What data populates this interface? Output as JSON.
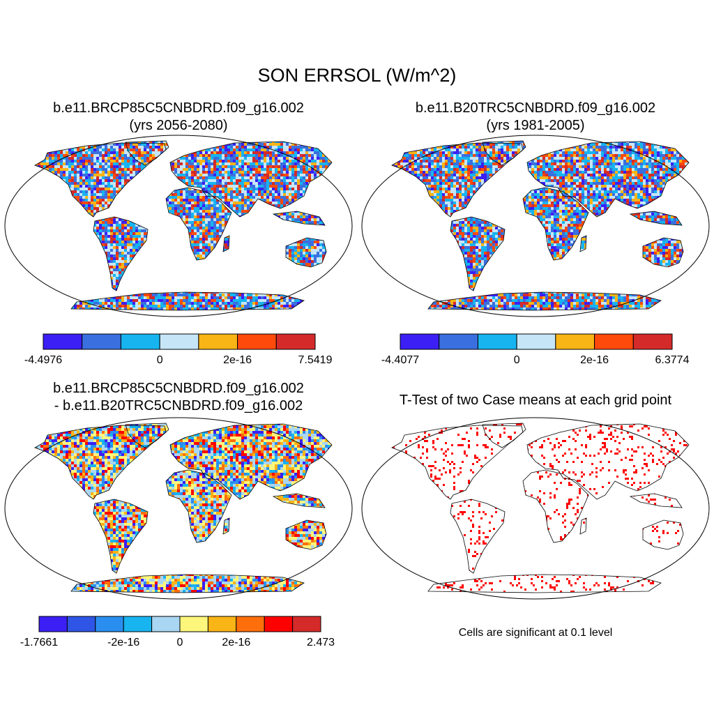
{
  "title": "SON ERRSOL (W/m^2)",
  "panels": [
    {
      "title_line1": "b.e11.BRCP85C5CNBDRD.f09_g16.002",
      "title_line2": "(yrs 2056-2080)",
      "colorbar": {
        "colors": [
          "#3b1ff5",
          "#3a6fe0",
          "#17b4f0",
          "#c6e6f7",
          "#f9b416",
          "#fe4a0b",
          "#d42a2a"
        ],
        "labels": [
          "-4.4976",
          "0",
          "2e-16",
          "7.5419"
        ]
      },
      "field_palette": [
        "#3b1ff5",
        "#3a6fe0",
        "#17b4f0",
        "#c6e6f7",
        "#c6e6f7",
        "#17b4f0",
        "#f9b416",
        "#fe4a0b",
        "#d42a2a",
        "#3a6fe0"
      ]
    },
    {
      "title_line1": "b.e11.B20TRC5CNBDRD.f09_g16.002",
      "title_line2": "(yrs 1981-2005)",
      "colorbar": {
        "colors": [
          "#3b1ff5",
          "#3a6fe0",
          "#17b4f0",
          "#c6e6f7",
          "#f9b416",
          "#fe4a0b",
          "#d42a2a"
        ],
        "labels": [
          "-4.4077",
          "0",
          "2e-16",
          "6.3774"
        ]
      },
      "field_palette": [
        "#3b1ff5",
        "#3a6fe0",
        "#17b4f0",
        "#c6e6f7",
        "#c6e6f7",
        "#17b4f0",
        "#f9b416",
        "#fe4a0b",
        "#d42a2a",
        "#3a6fe0"
      ]
    },
    {
      "title_line1": "b.e11.BRCP85C5CNBDRD.f09_g16.002",
      "title_line2": "- b.e11.B20TRC5CNBDRD.f09_g16.002",
      "colorbar": {
        "colors": [
          "#3b1ff5",
          "#2f55e6",
          "#2a8ef0",
          "#17b4f0",
          "#a9d6f2",
          "#fdf67c",
          "#f9b416",
          "#fe6f0b",
          "#fe0000",
          "#d42a2a"
        ],
        "labels": [
          "-1.7661",
          "-2e-16",
          "0",
          "2e-16",
          "2.473"
        ]
      },
      "field_palette": [
        "#fdf67c",
        "#fdf67c",
        "#a9d6f2",
        "#a9d6f2",
        "#17b4f0",
        "#f9b416",
        "#fe6f0b",
        "#2a8ef0",
        "#fe0000",
        "#3b1ff5"
      ]
    },
    {
      "title_line1": "T-Test of two Case means at each grid point",
      "note": "Cells are significant at 0.1 level",
      "significant_color": "#ff0000"
    }
  ]
}
